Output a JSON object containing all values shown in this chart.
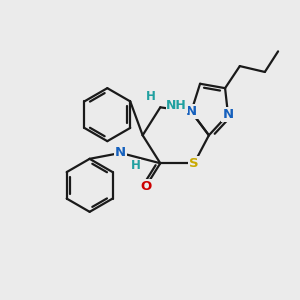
{
  "background_color": "#ebebeb",
  "bond_color": "#1a1a1a",
  "atom_colors": {
    "N": "#1560bd",
    "S": "#c8a800",
    "O": "#cc0000",
    "C": "#1a1a1a",
    "H": "#20a0a0"
  },
  "figsize": [
    3.0,
    3.0
  ],
  "dpi": 100
}
